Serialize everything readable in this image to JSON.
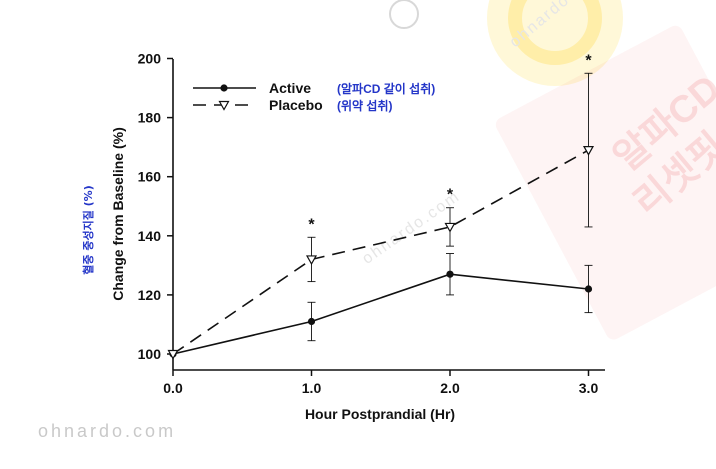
{
  "chart_data": {
    "type": "line",
    "x": [
      0.0,
      1.0,
      2.0,
      3.0
    ],
    "x_tick_labels": [
      "0.0",
      "1.0",
      "2.0",
      "3.0"
    ],
    "y_ticks": [
      100,
      120,
      140,
      160,
      180,
      200
    ],
    "xlim": [
      0,
      3.15
    ],
    "ylim": [
      95,
      200
    ],
    "xlabel": "Hour Postprandial (Hr)",
    "ylabel": "Change from Baseline (%)",
    "ylabel_korean": "혈중 중성지질 (%)",
    "series": [
      {
        "name": "Active",
        "note": "(알파CD 같이 섭취)",
        "style": "solid",
        "marker": "filled-circle",
        "values": [
          100,
          111,
          127,
          122
        ],
        "error": [
          0,
          6.5,
          7,
          8
        ]
      },
      {
        "name": "Placebo",
        "note": "(위약 섭취)",
        "style": "dashed",
        "marker": "open-triangle-down",
        "values": [
          100,
          132,
          143,
          169
        ],
        "error": [
          0,
          7.5,
          6.5,
          26
        ]
      }
    ],
    "significance_marker": "*",
    "significance_x": [
      1.0,
      2.0,
      3.0
    ],
    "legend_position": "top-left"
  },
  "watermarks": {
    "site": "ohnardo.com",
    "brand_main": "알파CD",
    "brand_sub": "리셋핏",
    "badge_text": "ohnardo"
  },
  "colors": {
    "axis": "#111111",
    "korean_label": "#2436c8",
    "badge_yellow": "#ffe14d",
    "stamp_red": "#e3262c"
  }
}
